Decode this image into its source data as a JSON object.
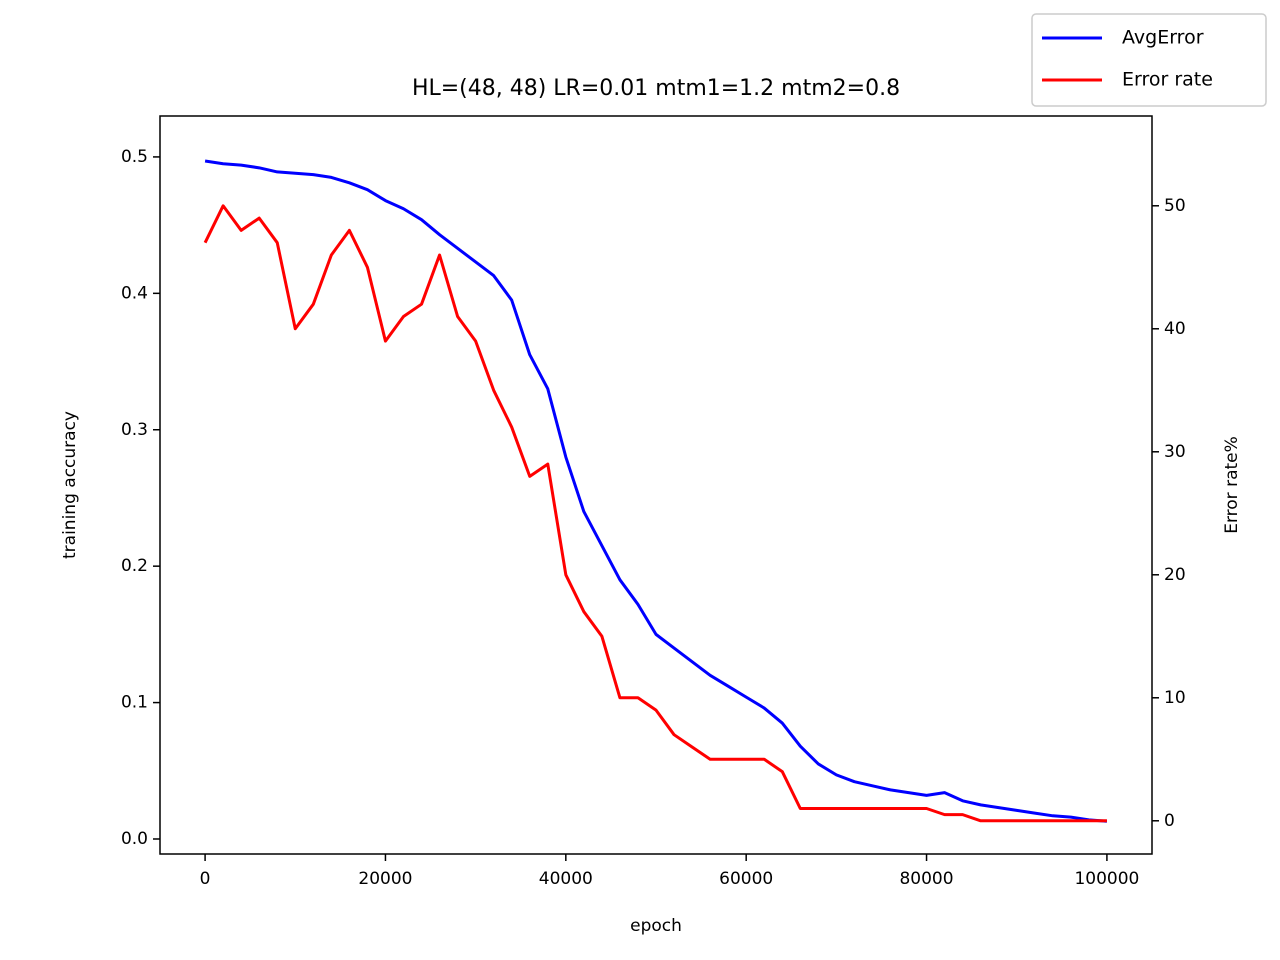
{
  "chart_data": {
    "type": "line",
    "title": "HL=(48, 48) LR=0.01 mtm1=1.2 mtm2=0.8",
    "xlabel": "epoch",
    "ylabel": "training accuracy",
    "y2label": "Error rate%",
    "x": [
      0,
      2000,
      4000,
      6000,
      8000,
      10000,
      12000,
      14000,
      16000,
      18000,
      20000,
      22000,
      24000,
      26000,
      28000,
      30000,
      32000,
      34000,
      36000,
      38000,
      40000,
      42000,
      44000,
      46000,
      48000,
      50000,
      52000,
      54000,
      56000,
      58000,
      60000,
      62000,
      64000,
      66000,
      68000,
      70000,
      72000,
      74000,
      76000,
      78000,
      80000,
      82000,
      84000,
      86000,
      88000,
      90000,
      92000,
      94000,
      96000,
      98000,
      100000
    ],
    "series": [
      {
        "name": "AvgError",
        "color": "#0000ff",
        "axis": "y",
        "values": [
          0.497,
          0.495,
          0.494,
          0.492,
          0.489,
          0.488,
          0.487,
          0.485,
          0.481,
          0.476,
          0.468,
          0.462,
          0.454,
          0.443,
          0.433,
          0.423,
          0.413,
          0.395,
          0.355,
          0.33,
          0.28,
          0.24,
          0.215,
          0.19,
          0.172,
          0.15,
          0.14,
          0.13,
          0.12,
          0.112,
          0.104,
          0.096,
          0.085,
          0.068,
          0.055,
          0.047,
          0.042,
          0.039,
          0.036,
          0.034,
          0.032,
          0.034,
          0.028,
          0.025,
          0.023,
          0.021,
          0.019,
          0.017,
          0.016,
          0.014,
          0.013
        ]
      },
      {
        "name": "Error rate",
        "color": "#ff0000",
        "axis": "y2",
        "values": [
          47,
          50,
          48,
          49,
          47,
          40,
          42,
          46,
          48,
          45,
          39,
          41,
          42,
          46,
          41,
          39,
          35,
          32,
          28,
          29,
          20,
          17,
          15,
          10,
          10,
          9,
          7,
          6,
          5,
          5,
          5,
          5,
          4,
          1,
          1,
          1,
          1,
          1,
          1,
          1,
          1,
          0.5,
          0.5,
          0,
          0,
          0,
          0,
          0,
          0,
          0,
          0
        ]
      }
    ],
    "xlim": [
      -5000,
      105000
    ],
    "xticks": [
      0,
      20000,
      40000,
      60000,
      80000,
      100000
    ],
    "ylim": [
      -0.011,
      0.53
    ],
    "yticks": [
      {
        "value": 0,
        "label": "0.0"
      },
      0.1,
      0.2,
      0.3,
      0.4,
      0.5
    ],
    "y2lim": [
      -2.7,
      57.3
    ],
    "y2ticks": [
      0,
      10,
      20,
      30,
      40,
      50
    ],
    "legend": "upper right",
    "grid": false
  }
}
